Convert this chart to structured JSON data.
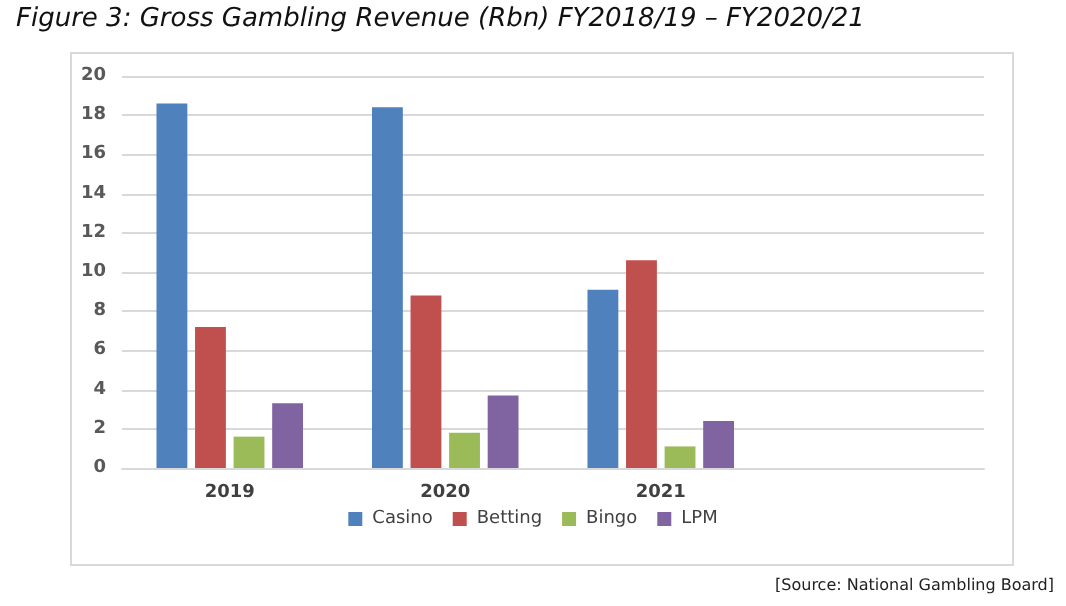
{
  "chart_data": {
    "type": "bar",
    "title": "Figure 3: Gross Gambling Revenue (Rbn) FY2018/19 – FY2020/21",
    "categories": [
      "2019",
      "2020",
      "2021",
      null
    ],
    "series": [
      {
        "name": "Casino",
        "color": "#4f81bd",
        "values": [
          18.6,
          18.4,
          9.1,
          null
        ]
      },
      {
        "name": "Betting",
        "color": "#c0504d",
        "values": [
          7.2,
          8.8,
          10.6,
          null
        ]
      },
      {
        "name": "Bingo",
        "color": "#9bbb59",
        "values": [
          1.6,
          1.8,
          1.1,
          null
        ]
      },
      {
        "name": "LPM",
        "color": "#8064a2",
        "values": [
          3.3,
          3.7,
          2.4,
          null
        ]
      }
    ],
    "ylim": [
      0,
      20
    ],
    "yticks": [
      0,
      2,
      4,
      6,
      8,
      10,
      12,
      14,
      16,
      18,
      20
    ],
    "grid": "y",
    "legend": "bottom",
    "annotations": [
      "[Source: National Gambling Board]"
    ]
  }
}
